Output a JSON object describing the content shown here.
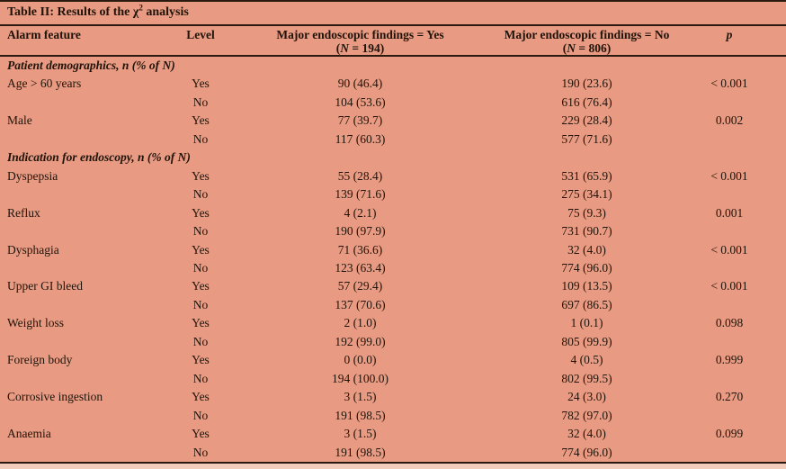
{
  "page": {
    "background_color": "#e89b82",
    "rule_color": "#2a1a10",
    "text_color": "#20130a"
  },
  "table": {
    "title": {
      "prefix": "Table II: Results of the χ",
      "sup": "2",
      "suffix": " analysis"
    },
    "header": {
      "alarm_feature": "Alarm feature",
      "level": "Level",
      "yes_col": {
        "line1": "Major endoscopic findings = Yes",
        "n_open": "(",
        "n_italic": "N",
        "n_rest": " = 194)"
      },
      "no_col": {
        "line1": "Major endoscopic findings = No",
        "n_open": "(",
        "n_italic": "N",
        "n_rest": " = 806)"
      },
      "p": "p"
    },
    "rows": [
      {
        "type": "section",
        "label": "Patient demographics, n (% of N)"
      },
      {
        "type": "data",
        "feature": "Age > 60 years",
        "level": "Yes",
        "yes": "90 (46.4)",
        "no": "190 (23.6)",
        "p": "< 0.001"
      },
      {
        "type": "data",
        "feature": "",
        "level": "No",
        "yes": "104 (53.6)",
        "no": "616 (76.4)",
        "p": ""
      },
      {
        "type": "data",
        "feature": "Male",
        "level": "Yes",
        "yes": "77 (39.7)",
        "no": "229 (28.4)",
        "p": "0.002"
      },
      {
        "type": "data",
        "feature": "",
        "level": "No",
        "yes": "117 (60.3)",
        "no": "577 (71.6)",
        "p": ""
      },
      {
        "type": "section",
        "label": "Indication for endoscopy, n (% of N)"
      },
      {
        "type": "data",
        "feature": "Dyspepsia",
        "level": "Yes",
        "yes": "55 (28.4)",
        "no": "531 (65.9)",
        "p": "< 0.001"
      },
      {
        "type": "data",
        "feature": "",
        "level": "No",
        "yes": "139 (71.6)",
        "no": "275 (34.1)",
        "p": ""
      },
      {
        "type": "data",
        "feature": "Reflux",
        "level": "Yes",
        "yes": "4 (2.1)",
        "no": "75 (9.3)",
        "p": "0.001"
      },
      {
        "type": "data",
        "feature": "",
        "level": "No",
        "yes": "190 (97.9)",
        "no": "731 (90.7)",
        "p": ""
      },
      {
        "type": "data",
        "feature": "Dysphagia",
        "level": "Yes",
        "yes": "71 (36.6)",
        "no": "32 (4.0)",
        "p": "< 0.001"
      },
      {
        "type": "data",
        "feature": "",
        "level": "No",
        "yes": "123 (63.4)",
        "no": "774 (96.0)",
        "p": ""
      },
      {
        "type": "data",
        "feature": "Upper GI bleed",
        "level": "Yes",
        "yes": "57 (29.4)",
        "no": "109 (13.5)",
        "p": "< 0.001"
      },
      {
        "type": "data",
        "feature": "",
        "level": "No",
        "yes": "137 (70.6)",
        "no": "697 (86.5)",
        "p": ""
      },
      {
        "type": "data",
        "feature": "Weight loss",
        "level": "Yes",
        "yes": "2 (1.0)",
        "no": "1 (0.1)",
        "p": "0.098"
      },
      {
        "type": "data",
        "feature": "",
        "level": "No",
        "yes": "192 (99.0)",
        "no": "805 (99.9)",
        "p": ""
      },
      {
        "type": "data",
        "feature": "Foreign body",
        "level": "Yes",
        "yes": "0 (0.0)",
        "no": "4 (0.5)",
        "p": "0.999"
      },
      {
        "type": "data",
        "feature": "",
        "level": "No",
        "yes": "194 (100.0)",
        "no": "802 (99.5)",
        "p": ""
      },
      {
        "type": "data",
        "feature": "Corrosive ingestion",
        "level": "Yes",
        "yes": "3 (1.5)",
        "no": "24 (3.0)",
        "p": "0.270"
      },
      {
        "type": "data",
        "feature": "",
        "level": "No",
        "yes": "191 (98.5)",
        "no": "782 (97.0)",
        "p": ""
      },
      {
        "type": "data",
        "feature": "Anaemia",
        "level": "Yes",
        "yes": "3 (1.5)",
        "no": "32 (4.0)",
        "p": "0.099"
      },
      {
        "type": "data",
        "feature": "",
        "level": "No",
        "yes": "191 (98.5)",
        "no": "774 (96.0)",
        "p": ""
      }
    ]
  }
}
